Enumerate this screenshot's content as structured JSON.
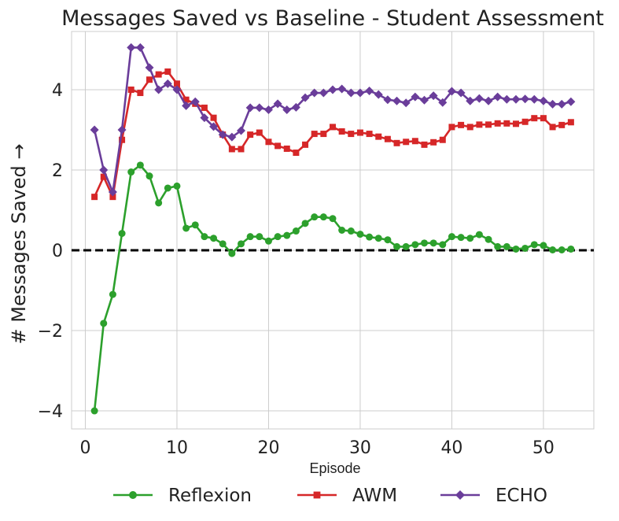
{
  "chart_data": {
    "type": "line",
    "title": "Messages Saved vs Baseline - Student Assessment",
    "xlabel": "Episode",
    "ylabel": "# Messages Saved →",
    "xlim": [
      -1.5,
      55.5
    ],
    "ylim": [
      -4.45,
      5.45
    ],
    "xticks": [
      0,
      10,
      20,
      30,
      40,
      50
    ],
    "xtick_labels": [
      "0",
      "10",
      "20",
      "30",
      "40",
      "50"
    ],
    "yticks": [
      -4,
      -2,
      0,
      2,
      4
    ],
    "ytick_labels": [
      "−4",
      "−2",
      "0",
      "2",
      "4"
    ],
    "grid": true,
    "legend_position": "bottom-center",
    "baseline": {
      "y": 0,
      "color": "#000000",
      "style": "dashed"
    },
    "x": [
      1,
      2,
      3,
      4,
      5,
      6,
      7,
      8,
      9,
      10,
      11,
      12,
      13,
      14,
      15,
      16,
      17,
      18,
      19,
      20,
      21,
      22,
      23,
      24,
      25,
      26,
      27,
      28,
      29,
      30,
      31,
      32,
      33,
      34,
      35,
      36,
      37,
      38,
      39,
      40,
      41,
      42,
      43,
      44,
      45,
      46,
      47,
      48,
      49,
      50,
      51,
      52,
      53
    ],
    "series": [
      {
        "name": "Reflexion",
        "color": "#2ca02c",
        "marker": "circle",
        "values": [
          -4.0,
          -1.82,
          -1.1,
          0.42,
          1.95,
          2.12,
          1.85,
          1.18,
          1.55,
          1.6,
          0.55,
          0.63,
          0.34,
          0.3,
          0.16,
          -0.08,
          0.16,
          0.34,
          0.34,
          0.23,
          0.34,
          0.37,
          0.48,
          0.67,
          0.83,
          0.83,
          0.79,
          0.5,
          0.48,
          0.4,
          0.33,
          0.3,
          0.26,
          0.09,
          0.09,
          0.14,
          0.18,
          0.18,
          0.14,
          0.34,
          0.32,
          0.3,
          0.39,
          0.27,
          0.09,
          0.09,
          0.03,
          0.05,
          0.14,
          0.12,
          0.01,
          0.01,
          0.03
        ]
      },
      {
        "name": "AWM",
        "color": "#d62728",
        "marker": "square",
        "values": [
          1.33,
          1.83,
          1.33,
          2.75,
          4.0,
          3.92,
          4.25,
          4.38,
          4.45,
          4.15,
          3.75,
          3.65,
          3.55,
          3.3,
          2.88,
          2.52,
          2.52,
          2.88,
          2.93,
          2.7,
          2.6,
          2.53,
          2.43,
          2.63,
          2.9,
          2.9,
          3.07,
          2.96,
          2.9,
          2.93,
          2.9,
          2.83,
          2.77,
          2.67,
          2.7,
          2.72,
          2.63,
          2.69,
          2.75,
          3.07,
          3.12,
          3.07,
          3.13,
          3.13,
          3.16,
          3.16,
          3.15,
          3.2,
          3.29,
          3.29,
          3.07,
          3.12,
          3.19
        ]
      },
      {
        "name": "ECHO",
        "color": "#6a3d9a",
        "marker": "diamond",
        "values": [
          3.0,
          2.0,
          1.45,
          3.0,
          5.05,
          5.05,
          4.55,
          4.0,
          4.15,
          4.0,
          3.6,
          3.7,
          3.3,
          3.08,
          2.88,
          2.82,
          2.98,
          3.55,
          3.55,
          3.5,
          3.65,
          3.5,
          3.56,
          3.8,
          3.92,
          3.92,
          4.0,
          4.02,
          3.92,
          3.92,
          3.97,
          3.88,
          3.75,
          3.72,
          3.67,
          3.82,
          3.74,
          3.85,
          3.68,
          3.96,
          3.92,
          3.72,
          3.78,
          3.72,
          3.82,
          3.76,
          3.76,
          3.77,
          3.76,
          3.72,
          3.64,
          3.64,
          3.7
        ]
      }
    ]
  }
}
